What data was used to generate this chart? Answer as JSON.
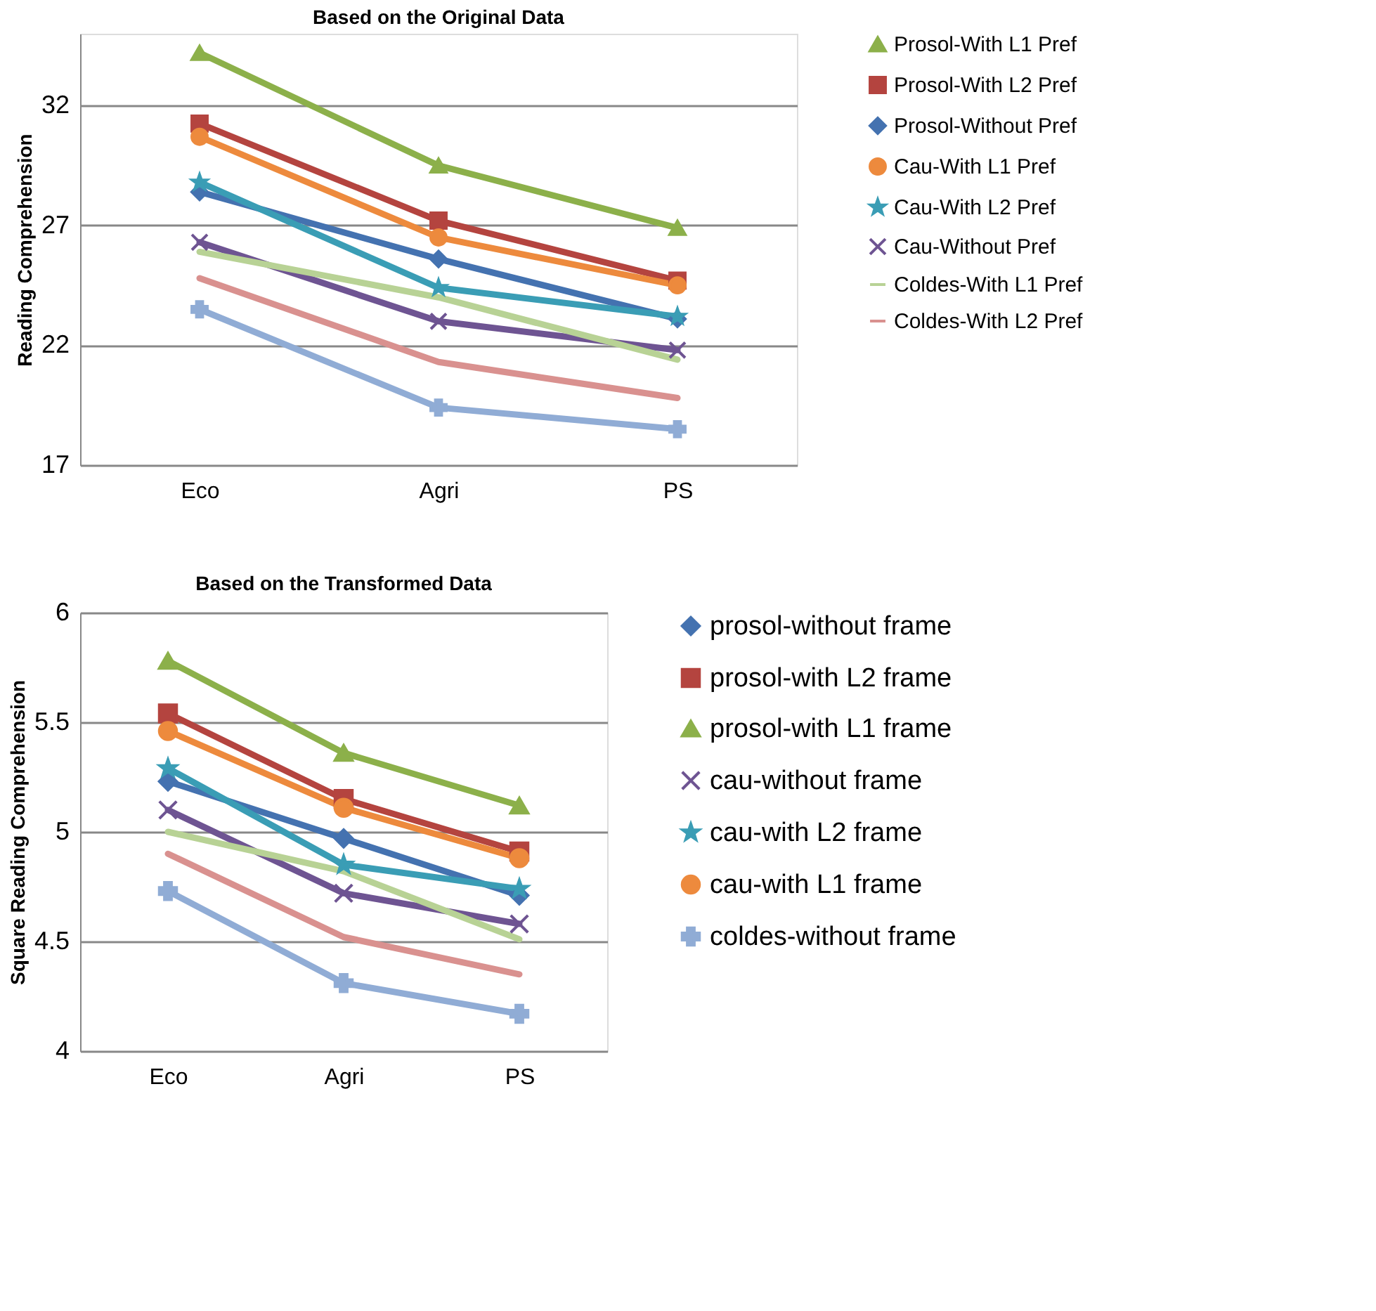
{
  "chart_data": [
    {
      "type": "line",
      "title": "Based on the Original Data",
      "ylabel": "Reading Comprehension",
      "categories": [
        "Eco",
        "Agri",
        "PS"
      ],
      "ylim": [
        17,
        35
      ],
      "yticks": [
        17,
        22,
        27,
        32
      ],
      "grid": "y",
      "legend": "right",
      "series": [
        {
          "name": "Prosol-With L1 Pref",
          "color": "#8cb04a",
          "marker": "triangle",
          "values": [
            34.2,
            29.5,
            26.9
          ]
        },
        {
          "name": "Prosol-With L2 Pref",
          "color": "#b4443f",
          "marker": "square",
          "values": [
            31.25,
            27.2,
            24.7
          ]
        },
        {
          "name": "Prosol-Without Pref",
          "color": "#4472b0",
          "marker": "diamond",
          "values": [
            28.4,
            25.6,
            23.1
          ]
        },
        {
          "name": "Cau-With L1 Pref",
          "color": "#ed8a3d",
          "marker": "circle",
          "values": [
            30.7,
            26.5,
            24.5
          ]
        },
        {
          "name": "Cau-With L2 Pref",
          "color": "#3a9db5",
          "marker": "star",
          "values": [
            28.8,
            24.4,
            23.2
          ]
        },
        {
          "name": "Cau-Without Pref",
          "color": "#6e5492",
          "marker": "cross",
          "values": [
            26.3,
            23.0,
            21.8
          ]
        },
        {
          "name": "Coldes-With L1 Pref",
          "color": "#b8d295",
          "marker": "none",
          "values": [
            25.9,
            24.0,
            21.4
          ]
        },
        {
          "name": "Coldes-With L2 Pref",
          "color": "#d9918f",
          "marker": "none",
          "values": [
            24.8,
            21.3,
            19.8
          ]
        },
        {
          "color": "#90acd5",
          "marker": "plus",
          "values": [
            23.5,
            19.4,
            18.5
          ]
        }
      ]
    },
    {
      "type": "line",
      "title": "Based on the Transformed Data",
      "ylabel": "Square Reading Comprehension",
      "categories": [
        "Eco",
        "Agri",
        "PS"
      ],
      "ylim": [
        4,
        6
      ],
      "yticks": [
        4,
        4.5,
        5,
        5.5,
        6
      ],
      "grid": "y",
      "legend": "right",
      "series": [
        {
          "name": "prosol-without frame",
          "color": "#4472b0",
          "marker": "diamond",
          "values": [
            5.23,
            4.97,
            4.71
          ]
        },
        {
          "name": "prosol-with L2 frame",
          "color": "#b4443f",
          "marker": "square",
          "values": [
            5.54,
            5.15,
            4.91
          ]
        },
        {
          "name": "prosol-with L1 frame",
          "color": "#8cb04a",
          "marker": "triangle",
          "values": [
            5.78,
            5.36,
            5.12
          ]
        },
        {
          "name": "cau-without frame",
          "color": "#6e5492",
          "marker": "cross",
          "values": [
            5.1,
            4.72,
            4.58
          ]
        },
        {
          "name": "cau-with L2 frame",
          "color": "#3a9db5",
          "marker": "star",
          "values": [
            5.29,
            4.85,
            4.74
          ]
        },
        {
          "name": "cau-with L1 frame",
          "color": "#ed8a3d",
          "marker": "circle",
          "values": [
            5.46,
            5.11,
            4.88
          ]
        },
        {
          "name": "coldes-without frame",
          "color": "#90acd5",
          "marker": "plus",
          "values": [
            4.73,
            4.31,
            4.17
          ]
        },
        {
          "color": "#b8d295",
          "marker": "none",
          "values": [
            5.0,
            4.82,
            4.51
          ]
        },
        {
          "color": "#d9918f",
          "marker": "none",
          "values": [
            4.9,
            4.52,
            4.35
          ]
        }
      ]
    }
  ]
}
